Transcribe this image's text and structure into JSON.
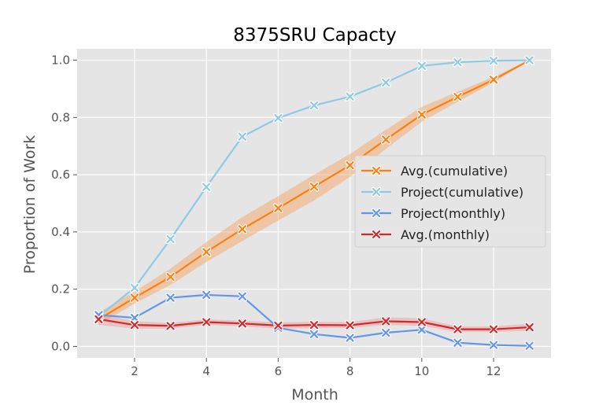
{
  "chart_data": {
    "type": "line",
    "title": "8375SRU Capacty",
    "xlabel": "Month",
    "ylabel": "Proportion of Work",
    "xlim": [
      0.4,
      13.6
    ],
    "ylim": [
      -0.04,
      1.04
    ],
    "xticks": [
      2,
      4,
      6,
      8,
      10,
      12
    ],
    "yticks": [
      0.0,
      0.2,
      0.4,
      0.6,
      0.8,
      1.0
    ],
    "grid": true,
    "legend_position": "center-right",
    "x": [
      1,
      2,
      3,
      4,
      5,
      6,
      7,
      8,
      9,
      10,
      11,
      12,
      13
    ],
    "series": [
      {
        "name": "Avg.(cumulative)",
        "color": "#ff7f0e",
        "band_color": "#f5a05a",
        "values": [
          0.095,
          0.17,
          0.243,
          0.33,
          0.41,
          0.483,
          0.558,
          0.633,
          0.723,
          0.81,
          0.872,
          0.932,
          1.0
        ],
        "band_lower": [
          0.075,
          0.15,
          0.215,
          0.295,
          0.368,
          0.44,
          0.51,
          0.592,
          0.69,
          0.785,
          0.855,
          0.922,
          1.0
        ],
        "band_upper": [
          0.118,
          0.192,
          0.272,
          0.365,
          0.452,
          0.525,
          0.6,
          0.672,
          0.757,
          0.837,
          0.89,
          0.942,
          1.0
        ]
      },
      {
        "name": "Project(cumulative)",
        "color": "#8ecae6",
        "values": [
          0.105,
          0.205,
          0.375,
          0.557,
          0.733,
          0.798,
          0.842,
          0.873,
          0.922,
          0.98,
          0.993,
          0.998,
          1.0
        ]
      },
      {
        "name": "Project(monthly)",
        "color": "#6495ed",
        "values": [
          0.11,
          0.1,
          0.17,
          0.18,
          0.175,
          0.065,
          0.043,
          0.03,
          0.048,
          0.058,
          0.013,
          0.005,
          0.002
        ]
      },
      {
        "name": "Avg.(monthly)",
        "color": "#d62728",
        "band_color": "#e89a9a",
        "values": [
          0.095,
          0.075,
          0.072,
          0.085,
          0.08,
          0.073,
          0.075,
          0.074,
          0.088,
          0.085,
          0.06,
          0.06,
          0.067
        ],
        "band_lower": [
          0.075,
          0.062,
          0.062,
          0.075,
          0.07,
          0.062,
          0.064,
          0.064,
          0.075,
          0.072,
          0.05,
          0.05,
          0.055
        ],
        "band_upper": [
          0.115,
          0.088,
          0.082,
          0.095,
          0.09,
          0.084,
          0.086,
          0.085,
          0.102,
          0.098,
          0.07,
          0.07,
          0.079
        ]
      }
    ]
  }
}
